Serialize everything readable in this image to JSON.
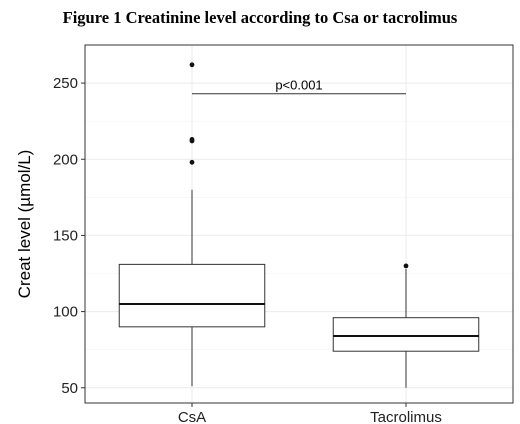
{
  "figure_title": "Figure 1 Creatinine level according to Csa or tacrolimus",
  "chart_data": {
    "type": "box",
    "title": "",
    "xlabel": "",
    "ylabel": "Creat level (µmol/L)",
    "ylim": [
      40,
      275
    ],
    "yticks": [
      50,
      100,
      150,
      200,
      250
    ],
    "grid": true,
    "categories": [
      "CsA",
      "Tacrolimus"
    ],
    "boxes": [
      {
        "category": "CsA",
        "whisker_low": 51,
        "q1": 90,
        "median": 105,
        "q3": 131,
        "whisker_high": 180,
        "outliers": [
          198,
          212,
          213,
          262
        ]
      },
      {
        "category": "Tacrolimus",
        "whisker_low": 50,
        "q1": 74,
        "median": 84,
        "q3": 96,
        "whisker_high": 128,
        "outliers": [
          130
        ]
      }
    ],
    "annotation": {
      "text": "p<0.001",
      "y": 243,
      "from": "CsA",
      "to": "Tacrolimus"
    },
    "colors": {
      "box_fill": "#ffffff",
      "stroke": "#333333",
      "grid": "#ebebeb",
      "panel_border": "#333333"
    }
  }
}
